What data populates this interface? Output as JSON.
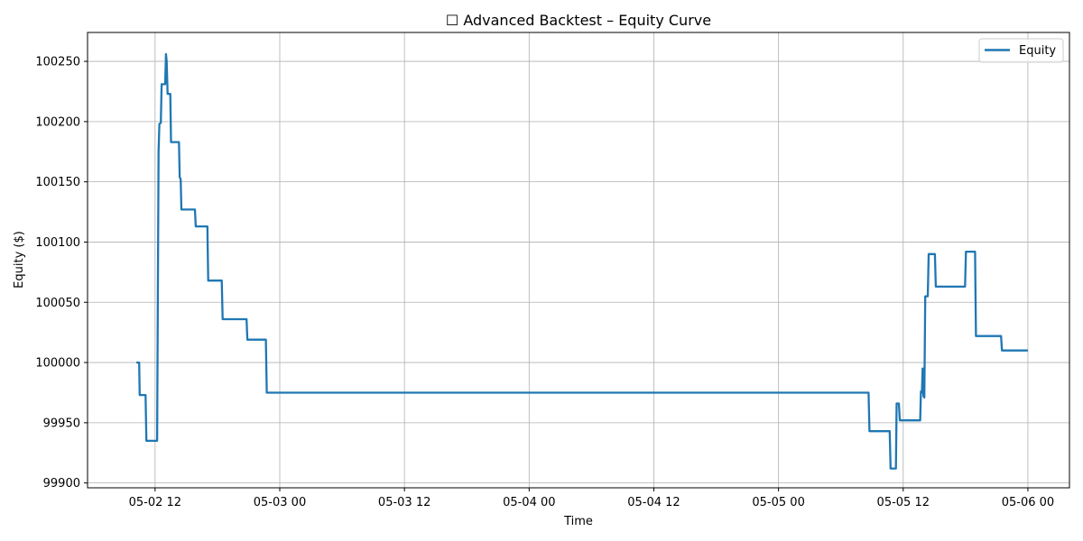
{
  "chart_data": {
    "type": "line",
    "title": "☐ Advanced Backtest – Equity Curve",
    "xlabel": "Time",
    "ylabel": "Equity ($)",
    "x_axis_type": "datetime",
    "x_tick_values": [
      "2025-05-02T12:00",
      "2025-05-03T00:00",
      "2025-05-03T12:00",
      "2025-05-04T00:00",
      "2025-05-04T12:00",
      "2025-05-05T00:00",
      "2025-05-05T12:00",
      "2025-05-06T00:00"
    ],
    "x_tick_labels": [
      "05-02 12",
      "05-03 00",
      "05-03 12",
      "05-04 00",
      "05-04 12",
      "05-05 00",
      "05-05 12",
      "05-06 00"
    ],
    "xlim": [
      "2025-05-02T05:30",
      "2025-05-06T04:00"
    ],
    "y_ticks": [
      99900,
      99950,
      100000,
      100050,
      100100,
      100150,
      100200,
      100250
    ],
    "ylim": [
      99896,
      100274
    ],
    "grid": true,
    "legend_position": "top-right",
    "colors": {
      "line": "#1f77b4",
      "grid": "#b0b0b0"
    },
    "series": [
      {
        "name": "Equity",
        "points": [
          [
            "2025-05-02T10:12",
            100000
          ],
          [
            "2025-05-02T10:28",
            100000
          ],
          [
            "2025-05-02T10:31",
            99973
          ],
          [
            "2025-05-02T11:05",
            99973
          ],
          [
            "2025-05-02T11:10",
            99935
          ],
          [
            "2025-05-02T12:12",
            99935
          ],
          [
            "2025-05-02T12:20",
            100175
          ],
          [
            "2025-05-02T12:25",
            100198
          ],
          [
            "2025-05-02T12:33",
            100199
          ],
          [
            "2025-05-02T12:38",
            100231
          ],
          [
            "2025-05-02T12:58",
            100231
          ],
          [
            "2025-05-02T13:03",
            100256
          ],
          [
            "2025-05-02T13:07",
            100250
          ],
          [
            "2025-05-02T13:12",
            100223
          ],
          [
            "2025-05-02T13:28",
            100223
          ],
          [
            "2025-05-02T13:32",
            100183
          ],
          [
            "2025-05-02T14:18",
            100183
          ],
          [
            "2025-05-02T14:22",
            100154
          ],
          [
            "2025-05-02T14:28",
            100152
          ],
          [
            "2025-05-02T14:32",
            100127
          ],
          [
            "2025-05-02T15:50",
            100127
          ],
          [
            "2025-05-02T15:55",
            100113
          ],
          [
            "2025-05-02T17:02",
            100113
          ],
          [
            "2025-05-02T17:07",
            100068
          ],
          [
            "2025-05-02T18:25",
            100068
          ],
          [
            "2025-05-02T18:30",
            100036
          ],
          [
            "2025-05-02T20:48",
            100036
          ],
          [
            "2025-05-02T20:53",
            100019
          ],
          [
            "2025-05-02T22:40",
            100019
          ],
          [
            "2025-05-02T22:45",
            99975
          ],
          [
            "2025-05-05T08:40",
            99975
          ],
          [
            "2025-05-05T08:45",
            99943
          ],
          [
            "2025-05-05T10:42",
            99943
          ],
          [
            "2025-05-05T10:47",
            99912
          ],
          [
            "2025-05-05T11:18",
            99912
          ],
          [
            "2025-05-05T11:22",
            99966
          ],
          [
            "2025-05-05T11:35",
            99966
          ],
          [
            "2025-05-05T11:40",
            99952
          ],
          [
            "2025-05-05T13:38",
            99952
          ],
          [
            "2025-05-05T13:42",
            99976
          ],
          [
            "2025-05-05T13:48",
            99975
          ],
          [
            "2025-05-05T13:52",
            99995
          ],
          [
            "2025-05-05T13:57",
            99972
          ],
          [
            "2025-05-05T14:02",
            99971
          ],
          [
            "2025-05-05T14:07",
            100055
          ],
          [
            "2025-05-05T14:22",
            100055
          ],
          [
            "2025-05-05T14:27",
            100090
          ],
          [
            "2025-05-05T15:03",
            100090
          ],
          [
            "2025-05-05T15:08",
            100063
          ],
          [
            "2025-05-05T17:57",
            100063
          ],
          [
            "2025-05-05T18:02",
            100092
          ],
          [
            "2025-05-05T18:55",
            100092
          ],
          [
            "2025-05-05T19:00",
            100022
          ],
          [
            "2025-05-05T21:25",
            100022
          ],
          [
            "2025-05-05T21:30",
            100010
          ],
          [
            "2025-05-06T00:00",
            100010
          ]
        ]
      }
    ]
  }
}
